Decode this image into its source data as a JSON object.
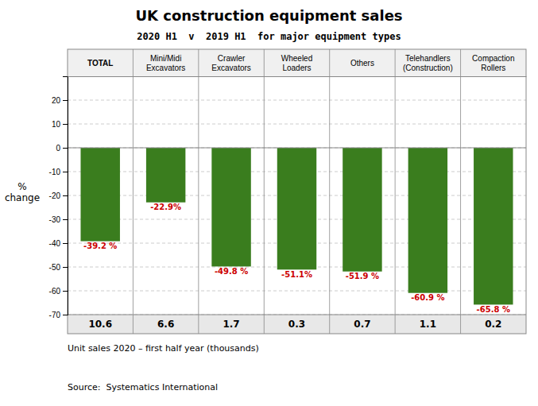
{
  "chart_data": {
    "type": "bar",
    "title": "UK construction equipment sales",
    "subtitle": "2020 H1  v  2019 H1  for major equipment types",
    "categories": [
      "TOTAL",
      "Mini/Midi\nExcavators",
      "Crawler\nExcavators",
      "Wheeled\nLoaders",
      "Others",
      "Telehandlers\n(Construction)",
      "Compaction\nRollers"
    ],
    "values": [
      -39.2,
      -22.9,
      -49.8,
      -51.1,
      -51.9,
      -60.9,
      -65.8
    ],
    "value_labels": [
      "-39.2 %",
      "-22.9%",
      "-49.8 %",
      "-51.1%",
      "-51.9 %",
      "-60.9 %",
      "-65.8 %"
    ],
    "data_labels": true,
    "color": "#3a7d1e",
    "ylim": [
      -70,
      30
    ],
    "yticks": [
      -70,
      -60,
      -50,
      -40,
      -30,
      -20,
      -10,
      0,
      10,
      20
    ],
    "grid": true,
    "ylabel": "%\nchange",
    "unit_sales": [
      10.6,
      6.6,
      1.7,
      0.3,
      0.7,
      1.1,
      0.2
    ],
    "unit_sales_label": "Unit sales 2020 – first half year (thousands)",
    "source": "Source:  Systematics International"
  }
}
